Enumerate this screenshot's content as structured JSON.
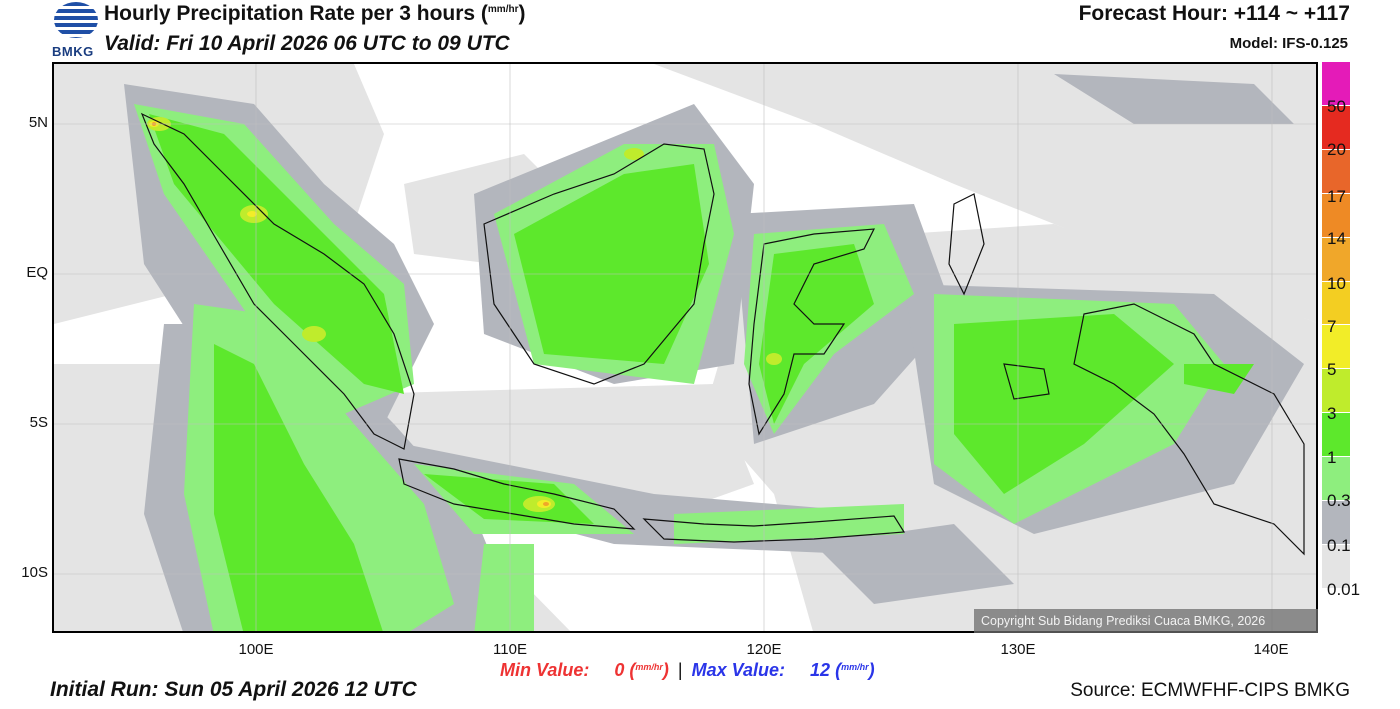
{
  "header": {
    "logo_text": "BMKG",
    "title": "Hourly Precipitation Rate per 3 hours (",
    "title_unit": "mm/hr",
    "title_close": ")",
    "valid": "Valid: Fri 10 April 2026 06 UTC to 09 UTC",
    "forecast_hour": "Forecast Hour: +114 ~ +117",
    "model": "Model: IFS-0.125"
  },
  "axes": {
    "lat_labels": [
      "5N",
      "EQ",
      "5S",
      "10S"
    ],
    "lon_labels": [
      "100E",
      "110E",
      "120E",
      "130E",
      "140E"
    ]
  },
  "legend": {
    "colors": [
      "#e41bb8",
      "#e52a20",
      "#e8662a",
      "#ee8a25",
      "#f0a72a",
      "#f3ce22",
      "#f2ed28",
      "#bfec2c",
      "#5de82c",
      "#8eee7e",
      "#b3b6bd",
      "#e4e4e4"
    ],
    "labels": [
      "50",
      "20",
      "17",
      "14",
      "10",
      "7",
      "5",
      "3",
      "1",
      "0.3",
      "0.1",
      "0.01"
    ]
  },
  "copyright": "Copyright Sub Bidang Prediksi Cuaca BMKG, 2026",
  "stats": {
    "min_label": "Min Value:",
    "min_value": "0",
    "max_label": "Max Value:",
    "max_value": "12",
    "unit": "mm/hr",
    "separator": "|"
  },
  "footer": {
    "initial_run": "Initial Run: Sun 05 April 2026 12 UTC",
    "source": "Source: ECMWFHF-CIPS BMKG"
  }
}
